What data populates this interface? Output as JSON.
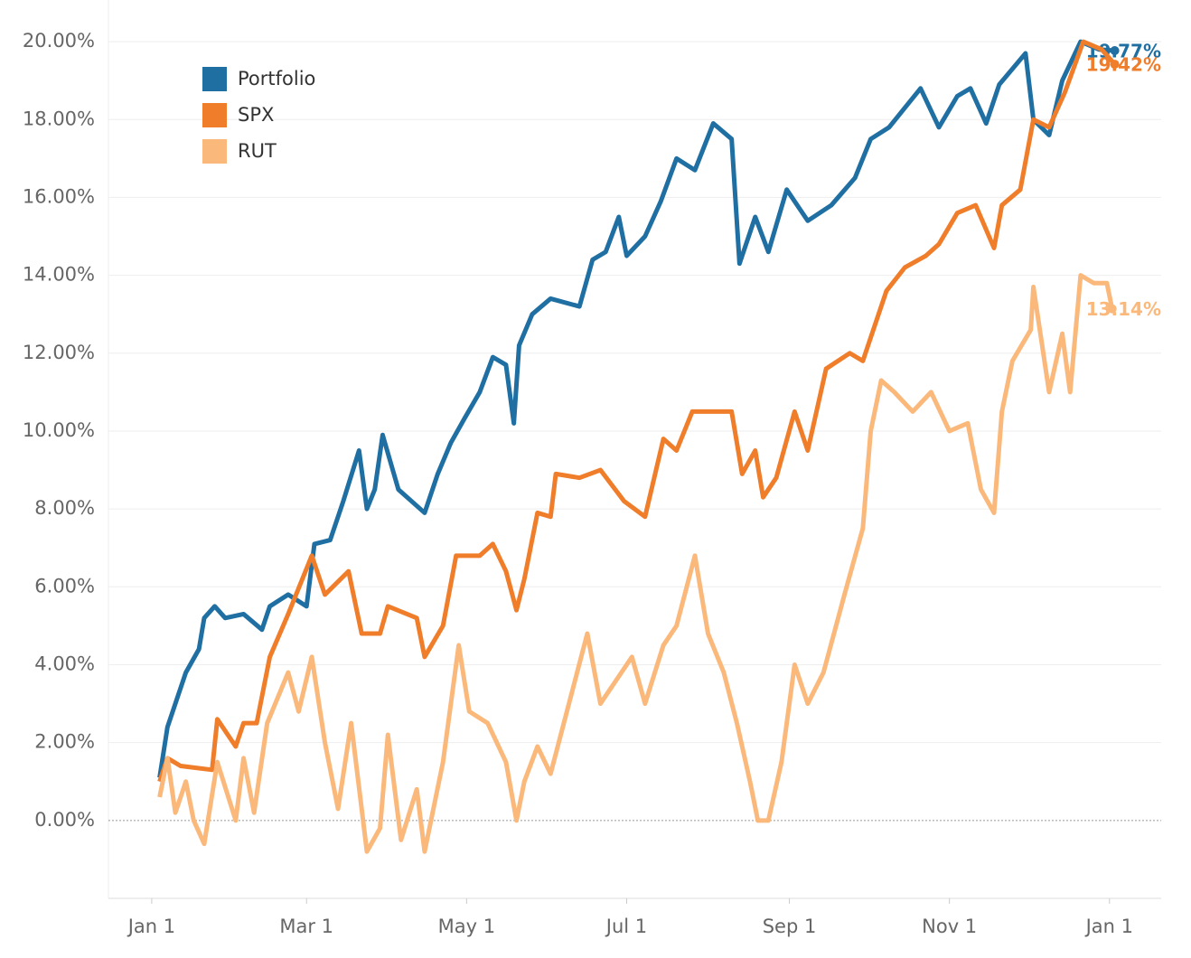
{
  "chart_data": {
    "type": "line",
    "xlim": [
      -16.5,
      384.7
    ],
    "xticks": [
      {
        "value": 0,
        "label": "Jan 1"
      },
      {
        "value": 59,
        "label": "Mar 1"
      },
      {
        "value": 120,
        "label": "May 1"
      },
      {
        "value": 181,
        "label": "Jul 1"
      },
      {
        "value": 243,
        "label": "Sep 1"
      },
      {
        "value": 304,
        "label": "Nov 1"
      },
      {
        "value": 365,
        "label": "Jan 1"
      }
    ],
    "ylim": [
      -2,
      21
    ],
    "yticks": [
      {
        "value": 0,
        "label": "0.00%"
      },
      {
        "value": 2,
        "label": "2.00%"
      },
      {
        "value": 4,
        "label": "4.00%"
      },
      {
        "value": 6,
        "label": "6.00%"
      },
      {
        "value": 8,
        "label": "8.00%"
      },
      {
        "value": 10,
        "label": "10.00%"
      },
      {
        "value": 12,
        "label": "12.00%"
      },
      {
        "value": 14,
        "label": "14.00%"
      },
      {
        "value": 16,
        "label": "16.00%"
      },
      {
        "value": 18,
        "label": "18.00%"
      },
      {
        "value": 20,
        "label": "20.00%"
      }
    ],
    "grid": true,
    "legend": "top-left",
    "series": [
      {
        "name": "Portfolio",
        "color": "#1f6fa3",
        "last_label": "19.77%",
        "x": [
          3,
          6,
          9,
          13,
          18,
          20,
          24,
          28,
          35,
          42,
          45,
          52,
          59,
          62,
          68,
          73,
          79,
          82,
          85,
          88,
          94,
          104,
          109,
          114,
          119,
          125,
          130,
          135,
          138,
          140,
          145,
          152,
          163,
          168,
          173,
          178,
          181,
          188,
          194,
          200,
          207,
          214,
          221,
          224,
          230,
          235,
          242,
          250,
          259,
          268,
          274,
          281,
          287,
          293,
          300,
          307,
          312,
          318,
          323,
          333,
          336,
          342,
          347,
          354,
          361,
          367
        ],
        "values": [
          1.1,
          2.4,
          3.0,
          3.8,
          4.4,
          5.2,
          5.5,
          5.2,
          5.3,
          4.9,
          5.5,
          5.8,
          5.5,
          7.1,
          7.2,
          8.2,
          9.5,
          8.0,
          8.5,
          9.9,
          8.5,
          7.9,
          8.9,
          9.7,
          10.3,
          11.0,
          11.9,
          11.7,
          10.2,
          12.2,
          13.0,
          13.4,
          13.2,
          14.4,
          14.6,
          15.5,
          14.5,
          15.0,
          15.9,
          17.0,
          16.7,
          17.9,
          17.5,
          14.3,
          15.5,
          14.6,
          16.2,
          15.4,
          15.8,
          16.5,
          17.5,
          17.8,
          18.3,
          18.8,
          17.8,
          18.6,
          18.8,
          17.9,
          18.9,
          19.7,
          18.0,
          17.6,
          19.0,
          20.0,
          19.8,
          19.77
        ]
      },
      {
        "name": "SPX",
        "color": "#f07d2a",
        "last_label": "19.42%",
        "x": [
          3,
          6,
          11,
          23,
          25,
          32,
          35,
          40,
          45,
          52,
          61,
          66,
          75,
          80,
          87,
          90,
          101,
          104,
          111,
          116,
          125,
          130,
          135,
          139,
          142,
          147,
          152,
          154,
          163,
          171,
          180,
          188,
          195,
          200,
          206,
          214,
          221,
          225,
          230,
          233,
          238,
          245,
          250,
          257,
          266,
          271,
          280,
          287,
          295,
          300,
          307,
          314,
          321,
          324,
          331,
          336,
          342,
          348,
          355,
          362,
          367
        ],
        "values": [
          1.0,
          1.6,
          1.4,
          1.3,
          2.6,
          1.9,
          2.5,
          2.5,
          4.2,
          5.3,
          6.8,
          5.8,
          6.4,
          4.8,
          4.8,
          5.5,
          5.2,
          4.2,
          5.0,
          6.8,
          6.8,
          7.1,
          6.4,
          5.4,
          6.2,
          7.9,
          7.8,
          8.9,
          8.8,
          9.0,
          8.2,
          7.8,
          9.8,
          9.5,
          10.5,
          10.5,
          10.5,
          8.9,
          9.5,
          8.3,
          8.8,
          10.5,
          9.5,
          11.6,
          12.0,
          11.8,
          13.6,
          14.2,
          14.5,
          14.8,
          15.6,
          15.8,
          14.7,
          15.8,
          16.2,
          18.0,
          17.8,
          18.7,
          20.0,
          19.8,
          19.42
        ]
      },
      {
        "name": "RUT",
        "color": "#fbb87b",
        "last_label": "13.14%",
        "x": [
          3,
          6,
          9,
          13,
          16,
          20,
          25,
          32,
          35,
          39,
          44,
          52,
          56,
          61,
          66,
          71,
          76,
          82,
          87,
          90,
          95,
          101,
          104,
          111,
          117,
          121,
          128,
          135,
          139,
          142,
          147,
          152,
          159,
          166,
          171,
          176,
          183,
          188,
          195,
          200,
          207,
          212,
          218,
          223,
          228,
          231,
          235,
          240,
          245,
          250,
          256,
          264,
          271,
          274,
          278,
          283,
          290,
          297,
          304,
          311,
          316,
          321,
          324,
          328,
          335,
          336,
          342,
          347,
          350,
          354,
          359,
          364,
          366
        ],
        "values": [
          0.6,
          1.6,
          0.2,
          1.0,
          0.0,
          -0.6,
          1.5,
          0.0,
          1.6,
          0.2,
          2.5,
          3.8,
          2.8,
          4.2,
          2.0,
          0.3,
          2.5,
          -0.8,
          -0.2,
          2.2,
          -0.5,
          0.8,
          -0.8,
          1.5,
          4.5,
          2.8,
          2.5,
          1.5,
          0.0,
          1.0,
          1.9,
          1.2,
          3.0,
          4.8,
          3.0,
          3.5,
          4.2,
          3.0,
          4.5,
          5.0,
          6.8,
          4.8,
          3.8,
          2.5,
          1.0,
          0.0,
          0.0,
          1.5,
          4.0,
          3.0,
          3.8,
          5.8,
          7.5,
          10.0,
          11.3,
          11.0,
          10.5,
          11.0,
          10.0,
          10.2,
          8.5,
          7.9,
          10.5,
          11.8,
          12.6,
          13.7,
          11.0,
          12.5,
          11.0,
          14.0,
          13.8,
          13.8,
          13.14
        ]
      }
    ]
  }
}
